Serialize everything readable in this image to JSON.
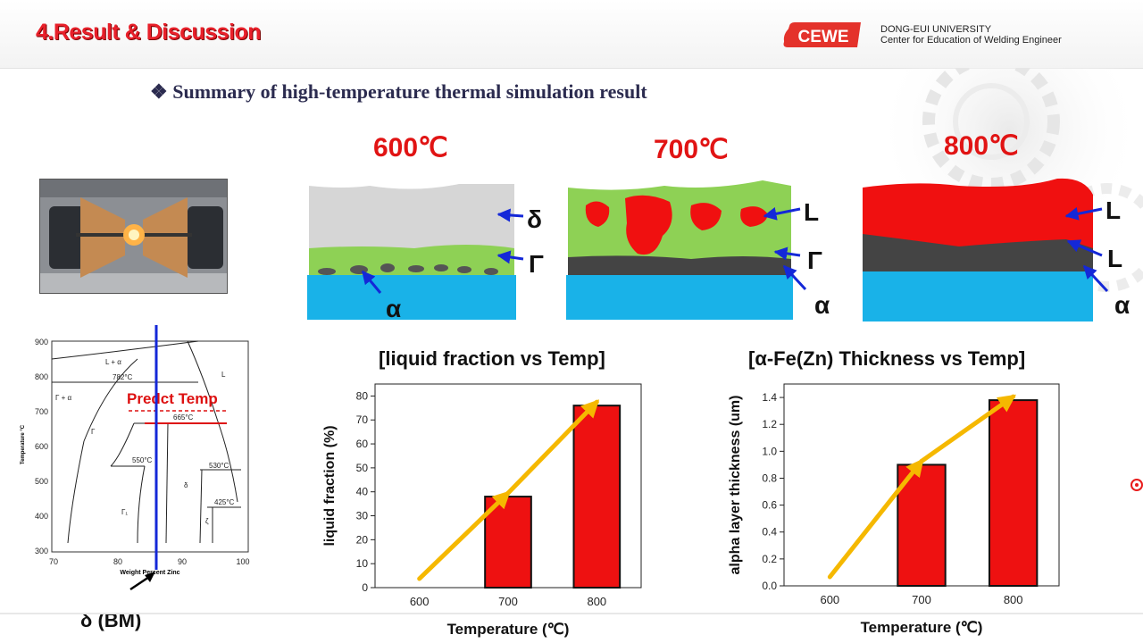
{
  "header": {
    "section_title": "4.Result & Discussion",
    "logo_text": "CEWE",
    "university": "DONG-EUI UNIVERSITY",
    "center": "Center for Education of Welding Engineer"
  },
  "summary_title": "Summary of high-temperature thermal simulation result",
  "micrographs": [
    {
      "temp": "600℃",
      "labels": [
        "δ",
        "Γ",
        "α"
      ]
    },
    {
      "temp": "700℃",
      "labels": [
        "L",
        "Γ",
        "α"
      ]
    },
    {
      "temp": "800℃",
      "labels": [
        "L",
        "L",
        "α"
      ]
    }
  ],
  "phase_diagram": {
    "ylabel": "Temperature °C",
    "xlabel": "Weight Percent Zinc",
    "yticks": [
      "900",
      "800",
      "700",
      "600",
      "500",
      "400",
      "300"
    ],
    "xticks": [
      "70",
      "80",
      "90",
      "100"
    ],
    "region_labels": [
      "L + α",
      "L",
      "782°C",
      "Γ + α",
      "Γ",
      "665°C",
      "550°C",
      "530°C",
      "δ",
      "425°C",
      "Γ₁",
      "ζ"
    ],
    "annotation": "Predct Temp",
    "bm_label": "δ (BM)"
  },
  "colors": {
    "accent_red": "#e11414",
    "arrow_orange": "#f5b800",
    "bar_red": "#ee1111",
    "alpha_blue": "#19b2e8",
    "gamma_green": "#8ed155"
  },
  "chart_data": [
    {
      "type": "bar",
      "title": "[liquid fraction vs Temp]",
      "xlabel": "Temperature (℃)",
      "ylabel": "liquid fraction (%)",
      "categories": [
        "600",
        "700",
        "800"
      ],
      "values": [
        0,
        38,
        76
      ],
      "ylim": [
        0,
        85
      ],
      "yticks": [
        "0",
        "10",
        "20",
        "30",
        "40",
        "50",
        "60",
        "70",
        "80"
      ],
      "trend_arrows": true
    },
    {
      "type": "bar",
      "title": "[α-Fe(Zn) Thickness vs Temp]",
      "xlabel": "Temperature (℃)",
      "ylabel": "alpha layer thickness (um)",
      "categories": [
        "600",
        "700",
        "800"
      ],
      "values": [
        0,
        0.9,
        1.38
      ],
      "ylim": [
        0,
        1.5
      ],
      "yticks": [
        "0.0",
        "0.2",
        "0.4",
        "0.6",
        "0.8",
        "1.0",
        "1.2",
        "1.4"
      ],
      "trend_arrows": true
    }
  ]
}
